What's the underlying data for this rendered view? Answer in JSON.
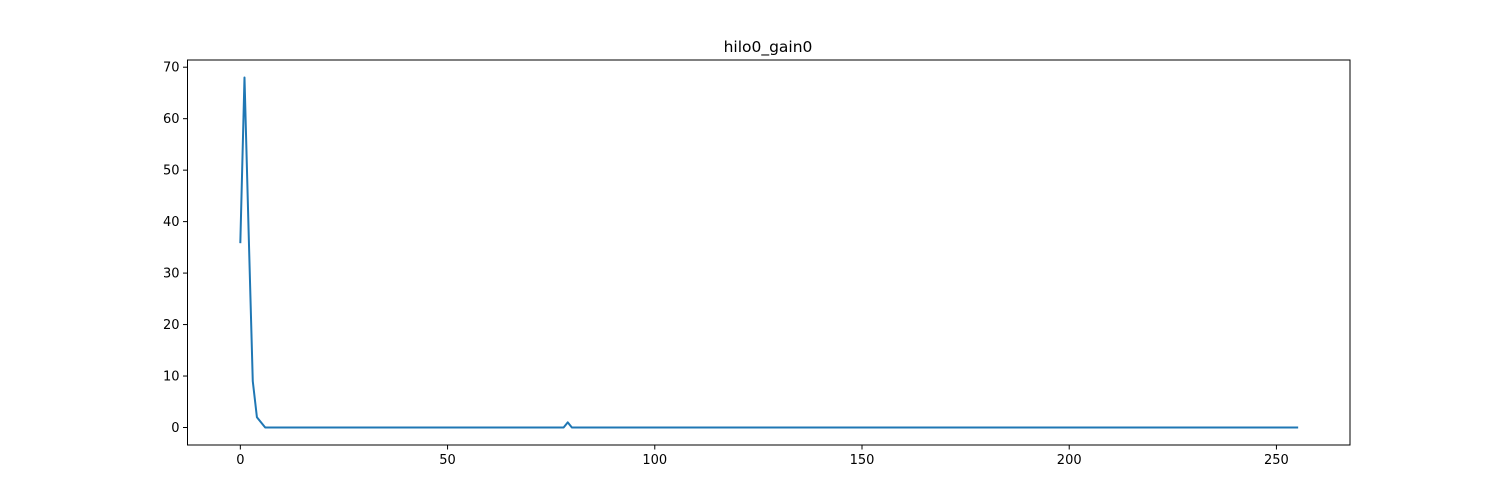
{
  "chart_data": {
    "type": "line",
    "title": "hilo0_gain0",
    "xlabel": "",
    "ylabel": "",
    "xlim": [
      -12.75,
      267.75
    ],
    "ylim": [
      -3.4,
      71.4
    ],
    "xticks": [
      0,
      50,
      100,
      150,
      200,
      250
    ],
    "yticks": [
      0,
      10,
      20,
      30,
      40,
      50,
      60,
      70
    ],
    "grid": false,
    "legend": "none",
    "series": [
      {
        "color": "#1f77b4",
        "points": [
          [
            0,
            36
          ],
          [
            1,
            68
          ],
          [
            2,
            38
          ],
          [
            3,
            9
          ],
          [
            4,
            2
          ],
          [
            5,
            1
          ],
          [
            6,
            0
          ],
          [
            78,
            0
          ],
          [
            79,
            1
          ],
          [
            80,
            0
          ],
          [
            255,
            0
          ]
        ]
      }
    ]
  }
}
